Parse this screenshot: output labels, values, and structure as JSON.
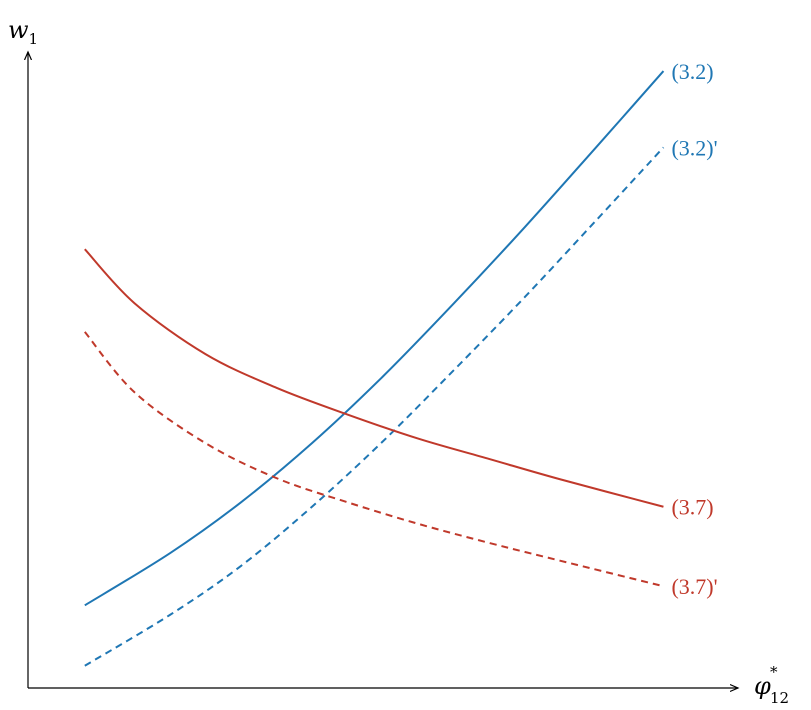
{
  "chart_data": {
    "type": "line",
    "title": "",
    "xlabel": {
      "symbol": "φ",
      "superscript": "*",
      "subscript": "12"
    },
    "ylabel": {
      "symbol": "w",
      "subscript": "1"
    },
    "xlim": [
      0,
      10
    ],
    "ylim": [
      0,
      10
    ],
    "grid": false,
    "legend": "none",
    "colors": {
      "blue": "#1f77b4",
      "red": "#c0392b",
      "axis": "#000000"
    },
    "series": [
      {
        "name": "(3.2)",
        "color": "#1f77b4",
        "dashed": false,
        "x": [
          0.8,
          2.0,
          3.0,
          4.0,
          5.0,
          6.0,
          7.0,
          8.0,
          8.95
        ],
        "y": [
          1.3,
          2.12,
          2.92,
          3.85,
          4.9,
          6.05,
          7.25,
          8.5,
          9.7
        ]
      },
      {
        "name": "(3.2)'",
        "color": "#1f77b4",
        "dashed": true,
        "x": [
          0.8,
          2.0,
          3.0,
          4.0,
          5.0,
          6.0,
          7.0,
          8.0,
          8.95
        ],
        "y": [
          0.35,
          1.15,
          1.92,
          2.85,
          3.88,
          5.0,
          6.15,
          7.35,
          8.5
        ]
      },
      {
        "name": "(3.7)",
        "color": "#c0392b",
        "dashed": false,
        "x": [
          0.8,
          1.5,
          2.5,
          3.5,
          4.5,
          5.5,
          6.5,
          7.5,
          8.95
        ],
        "y": [
          6.9,
          6.05,
          5.25,
          4.72,
          4.3,
          3.92,
          3.6,
          3.28,
          2.85
        ]
      },
      {
        "name": "(3.7)'",
        "color": "#c0392b",
        "dashed": true,
        "x": [
          0.8,
          1.5,
          2.5,
          3.5,
          4.5,
          5.5,
          6.5,
          7.5,
          8.95
        ],
        "y": [
          5.6,
          4.65,
          3.85,
          3.3,
          2.92,
          2.58,
          2.28,
          2.0,
          1.6
        ]
      }
    ]
  }
}
